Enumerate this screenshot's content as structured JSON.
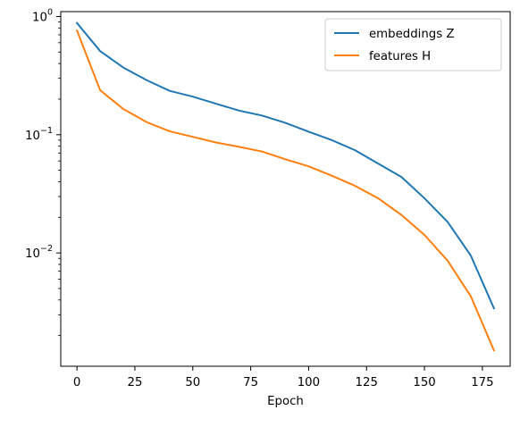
{
  "chart_data": {
    "type": "line",
    "title": "",
    "xlabel": "Epoch",
    "ylabel": "",
    "yscale": "log",
    "xlim": [
      -7,
      187
    ],
    "ylim": [
      0.0011,
      1.1
    ],
    "xticks": [
      0,
      25,
      50,
      75,
      100,
      125,
      150,
      175
    ],
    "yticks": [
      {
        "base": "10",
        "exp": "0",
        "value": 1
      },
      {
        "base": "10",
        "exp": "−1",
        "value": 0.1
      },
      {
        "base": "10",
        "exp": "−2",
        "value": 0.01
      }
    ],
    "grid": false,
    "legend_position": "top-right",
    "x": [
      0,
      10,
      20,
      30,
      40,
      50,
      60,
      70,
      80,
      90,
      100,
      110,
      120,
      130,
      140,
      150,
      160,
      170,
      180
    ],
    "series": [
      {
        "name": "embeddings Z",
        "color": "#1f77b4",
        "values": [
          0.88,
          0.51,
          0.37,
          0.29,
          0.235,
          0.21,
          0.183,
          0.16,
          0.145,
          0.126,
          0.106,
          0.09,
          0.074,
          0.057,
          0.044,
          0.029,
          0.0183,
          0.0095,
          0.0034
        ]
      },
      {
        "name": "features H",
        "color": "#ff7f0e",
        "values": [
          0.76,
          0.238,
          0.165,
          0.128,
          0.107,
          0.096,
          0.086,
          0.079,
          0.072,
          0.062,
          0.054,
          0.045,
          0.037,
          0.029,
          0.021,
          0.0142,
          0.0086,
          0.0043,
          0.0015
        ]
      }
    ]
  }
}
